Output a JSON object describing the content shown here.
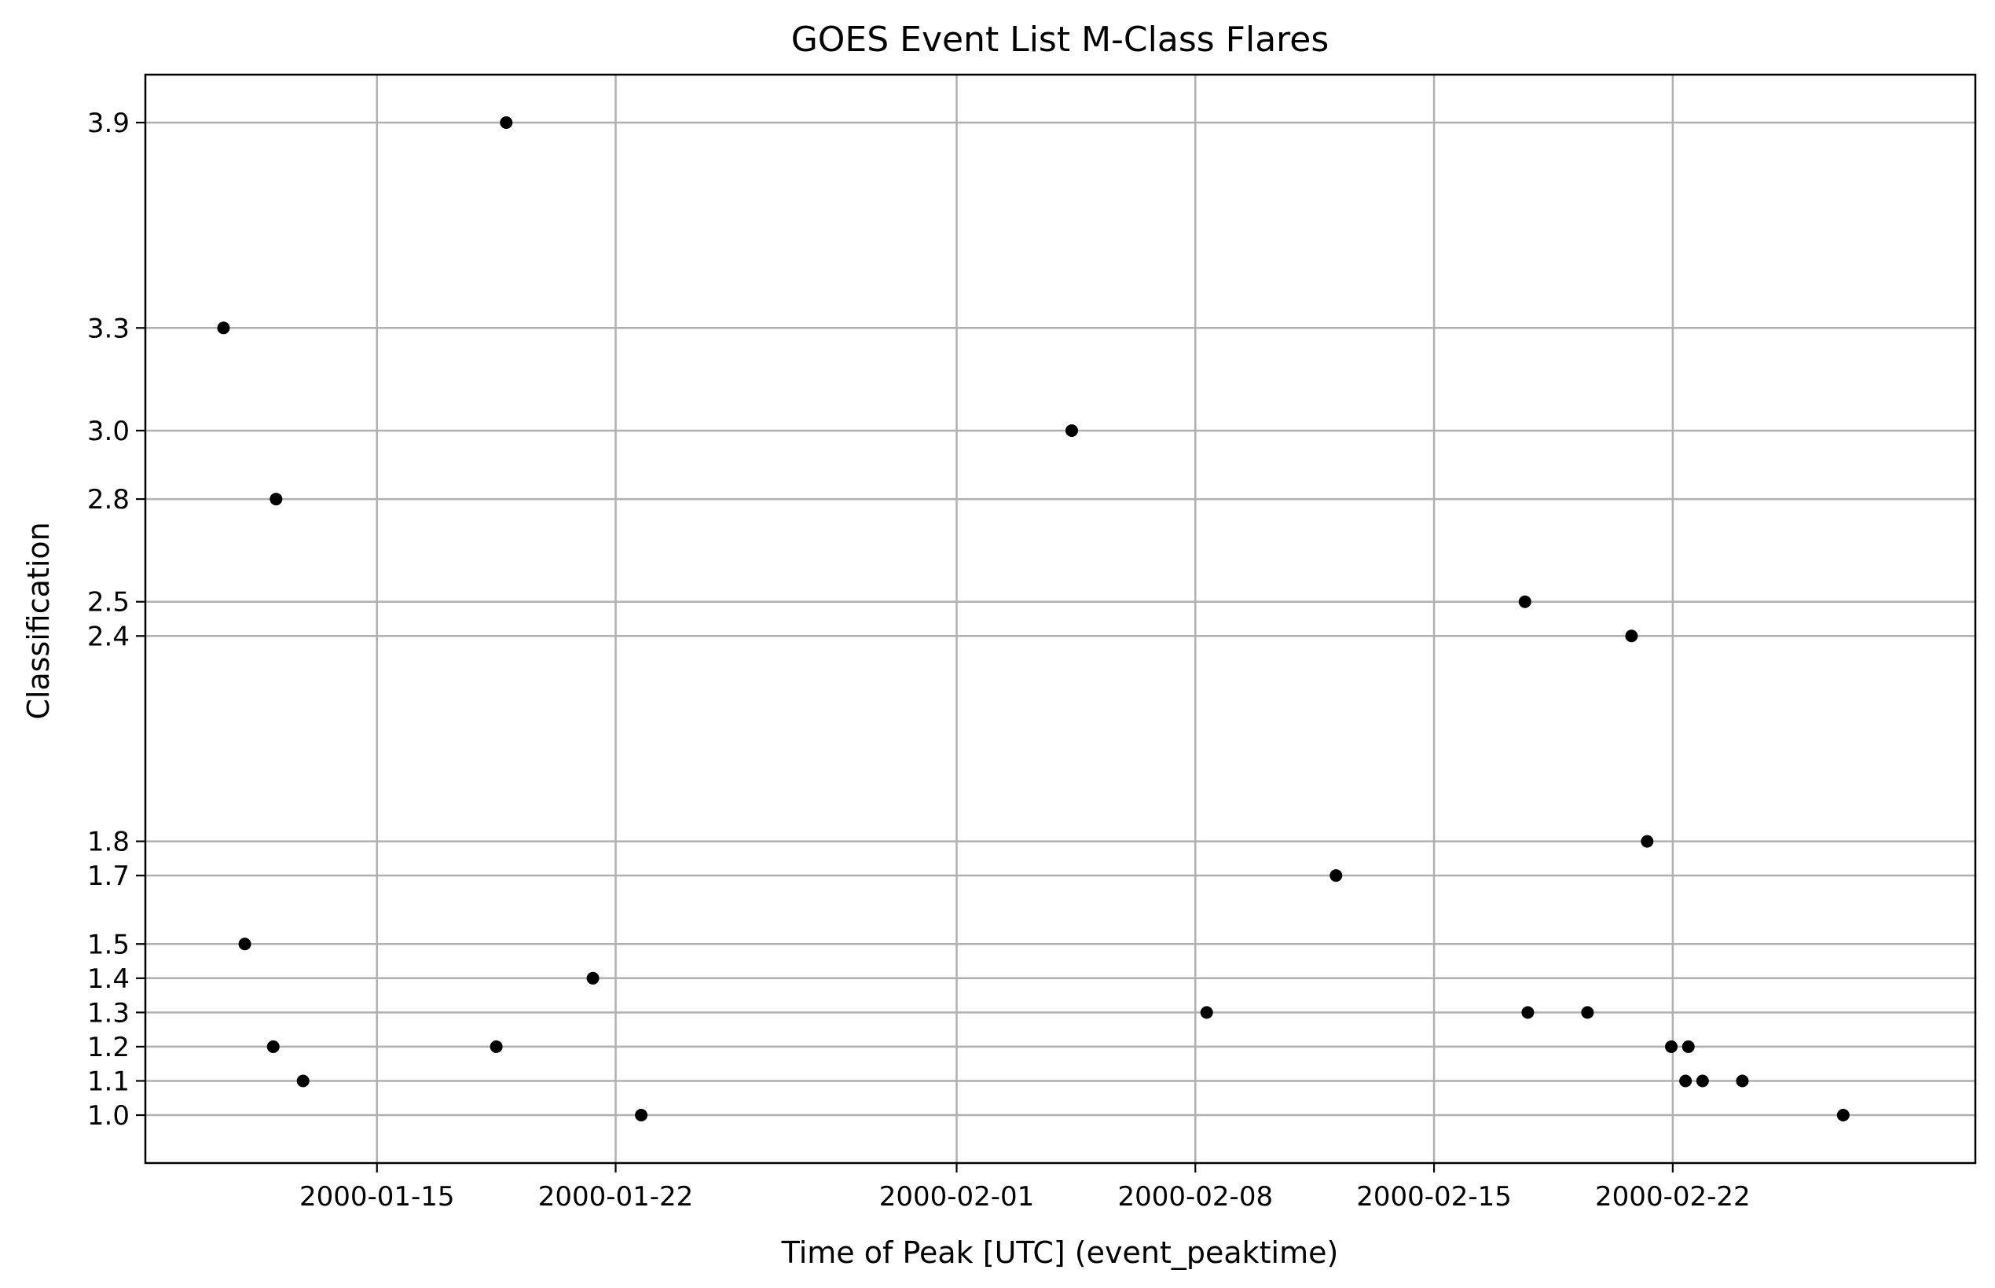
{
  "chart_data": {
    "type": "scatter",
    "title": "GOES Event List M-Class Flares",
    "xlabel": "Time of Peak [UTC] (event_peaktime)",
    "ylabel": "Classification",
    "x_ticks": [
      "2000-01-15",
      "2000-01-22",
      "2000-02-01",
      "2000-02-08",
      "2000-02-15",
      "2000-02-22"
    ],
    "y_ticks": [
      1.0,
      1.1,
      1.2,
      1.3,
      1.4,
      1.5,
      1.7,
      1.8,
      2.4,
      2.5,
      2.8,
      3.0,
      3.3,
      3.9
    ],
    "y_tick_labels": [
      "1.0",
      "1.1",
      "1.2",
      "1.3",
      "1.4",
      "1.5",
      "1.7",
      "1.8",
      "2.4",
      "2.5",
      "2.8",
      "3.0",
      "3.3",
      "3.9"
    ],
    "xlim": [
      "2000-01-08T05:00",
      "2000-03-01T21:00"
    ],
    "ylim": [
      0.86,
      4.04
    ],
    "grid": true,
    "marker_color": "#000000",
    "points": [
      {
        "x": "2000-01-10T12:00",
        "y": 3.3
      },
      {
        "x": "2000-01-11T03:00",
        "y": 1.5
      },
      {
        "x": "2000-01-11T23:00",
        "y": 1.2
      },
      {
        "x": "2000-01-12T01:00",
        "y": 2.8
      },
      {
        "x": "2000-01-12T20:00",
        "y": 1.1
      },
      {
        "x": "2000-01-18T12:00",
        "y": 1.2
      },
      {
        "x": "2000-01-18T19:00",
        "y": 3.9
      },
      {
        "x": "2000-01-21T08:00",
        "y": 1.4
      },
      {
        "x": "2000-01-22T18:00",
        "y": 1.0
      },
      {
        "x": "2000-02-04T09:00",
        "y": 3.0
      },
      {
        "x": "2000-02-08T08:00",
        "y": 1.3
      },
      {
        "x": "2000-02-12T03:00",
        "y": 1.7
      },
      {
        "x": "2000-02-17T16:00",
        "y": 2.5
      },
      {
        "x": "2000-02-17T18:00",
        "y": 1.3
      },
      {
        "x": "2000-02-19T12:00",
        "y": 1.3
      },
      {
        "x": "2000-02-20T19:00",
        "y": 2.4
      },
      {
        "x": "2000-02-21T06:00",
        "y": 1.8
      },
      {
        "x": "2000-02-21T23:00",
        "y": 1.2
      },
      {
        "x": "2000-02-22T09:00",
        "y": 1.1
      },
      {
        "x": "2000-02-22T11:00",
        "y": 1.2
      },
      {
        "x": "2000-02-22T21:00",
        "y": 1.1
      },
      {
        "x": "2000-02-24T01:00",
        "y": 1.1
      },
      {
        "x": "2000-02-27T00:00",
        "y": 1.0
      }
    ]
  }
}
